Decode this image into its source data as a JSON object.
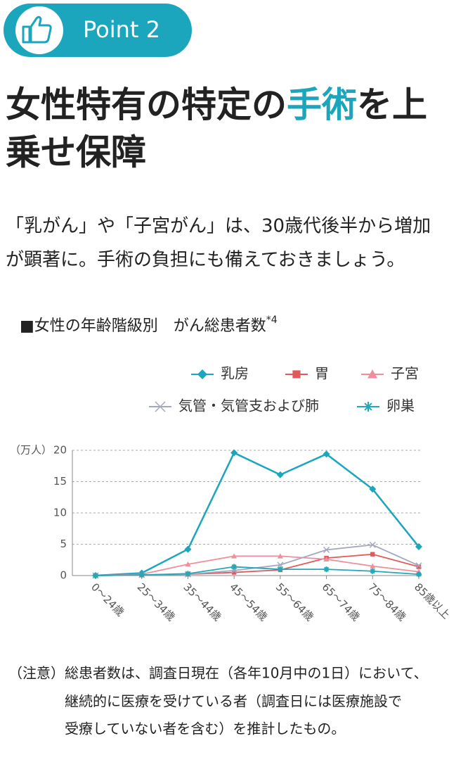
{
  "header": {
    "badge": "Point 2",
    "heading": {
      "line1": [
        "女性特有の特定の",
        "手術",
        "を上"
      ],
      "line2": "乗せ保障"
    },
    "paragraph": [
      "「乳がん」や「子宮がん」は、30歳代後半から増加",
      "が顕著に。手術の負担にも備えておきましょう。"
    ]
  },
  "chart_data": {
    "type": "line",
    "title": "■女性の年齢階級別　がん総患者数",
    "title_note": "*4",
    "y_unit": "（万人）",
    "categories": [
      "0～24歳",
      "25～34歳",
      "35～44歳",
      "45～54歳",
      "55～64歳",
      "65～74歳",
      "75～84歳",
      "85歳以上"
    ],
    "series": [
      {
        "name": "乳房",
        "color": "#1ba6bd",
        "marker": "diamond",
        "values": [
          0,
          0.4,
          4.2,
          19.6,
          16.1,
          19.4,
          13.8,
          4.6
        ]
      },
      {
        "name": "胃",
        "color": "#e05a5a",
        "marker": "square",
        "values": [
          0,
          0.1,
          0.2,
          0.5,
          0.9,
          2.8,
          3.4,
          1.4
        ]
      },
      {
        "name": "子宮",
        "color": "#ef8e9c",
        "marker": "triangle",
        "values": [
          0,
          0.2,
          1.8,
          3.1,
          3.1,
          2.6,
          1.5,
          0.6
        ]
      },
      {
        "name": "気管・気管支および肺",
        "color": "#a3a7c0",
        "marker": "cross",
        "values": [
          0,
          0.1,
          0.2,
          0.8,
          1.7,
          4.1,
          4.9,
          1.6
        ]
      },
      {
        "name": "卵巣",
        "color": "#22a8b6",
        "marker": "asterisk",
        "values": [
          0,
          0.1,
          0.3,
          1.4,
          1.0,
          1.0,
          0.7,
          0.2
        ]
      }
    ],
    "ylim": [
      0,
      20
    ],
    "yticks": [
      0,
      5,
      10,
      15,
      20
    ],
    "grid": true
  },
  "footnote": {
    "label": "（注意）",
    "lines": [
      "総患者数は、調査日現在（各年10月中の1日）において、",
      "継続的に医療を受けている者（調査日には医療施設で",
      "受療していない者を含む）を推計したもの。"
    ]
  }
}
